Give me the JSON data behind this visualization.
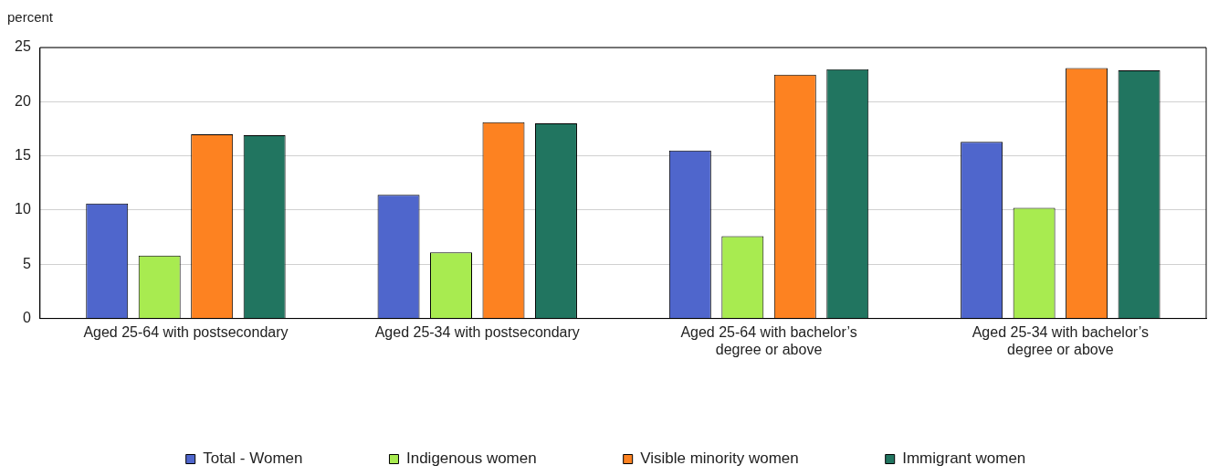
{
  "chart_data": {
    "type": "bar",
    "ylabel": "percent",
    "categories": [
      "Aged 25-64 with postsecondary",
      "Aged 25-34 with postsecondary",
      "Aged 25-64 with bachelor’s degree or above",
      "Aged 25-34 with bachelor’s degree or above"
    ],
    "series": [
      {
        "name": "Total - Women",
        "color": "#4f66cc",
        "values": [
          10.6,
          11.4,
          15.5,
          16.3
        ]
      },
      {
        "name": "Indigenous women",
        "color": "#a8eb50",
        "values": [
          5.8,
          6.1,
          7.6,
          10.2
        ]
      },
      {
        "name": "Visible minority women",
        "color": "#fd8221",
        "values": [
          17.0,
          18.1,
          22.5,
          23.1
        ]
      },
      {
        "name": "Immigrant women",
        "color": "#217560",
        "values": [
          16.9,
          18.0,
          23.0,
          22.9
        ]
      }
    ],
    "ylim": [
      0,
      25
    ],
    "yticks": [
      0,
      5,
      10,
      15,
      20,
      25
    ],
    "grid": "y",
    "legend": "bottom"
  }
}
